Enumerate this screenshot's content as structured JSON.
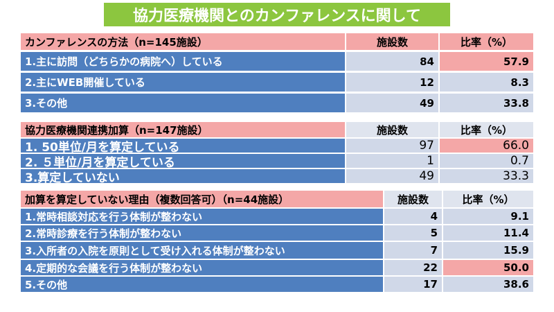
{
  "title": "協力医療機関とのカンファレンスに関して",
  "tables": [
    {
      "header": [
        "カンファレンスの方法（n=145施設）",
        "施設数",
        "比率（%）"
      ],
      "rows": [
        [
          "1.主に訪問（どちらかの病院へ）している",
          84,
          57.9
        ],
        [
          "2.主にWEB開催している",
          12,
          8.3
        ],
        [
          "3.その他",
          49,
          33.8
        ]
      ],
      "highlighted_rows": [
        0
      ],
      "bold_values": true
    },
    {
      "header": [
        "協力医療機関連携加算（n=147施設）",
        "施設数",
        "比率（%）"
      ],
      "rows": [
        [
          "1. 50単位/月を算定している",
          97,
          {
            "value": 66,
            "label": "66.0"
          }
        ],
        [
          "2. ５単位/月を算定している",
          1,
          0.7
        ],
        [
          "3.算定していない",
          49,
          33.3
        ]
      ],
      "highlighted_rows": [
        0
      ],
      "bold_values": false
    },
    {
      "header": [
        "加算を算定していない理由（複数回答可）（n=44施設）",
        "施設数",
        "比率（%）"
      ],
      "rows": [
        [
          "1.常時相談対応を行う体制が整わない",
          4,
          9.1
        ],
        [
          "2.常時診療を行う体制が整わない",
          5,
          11.4
        ],
        [
          "3.入所者の入院を原則として受け入れる体制が整わない",
          7,
          15.9
        ],
        [
          "4.定期的な会議を行う体制が整わない",
          22,
          {
            "value": 50,
            "label": "50.0"
          }
        ],
        [
          "5.その他",
          17,
          38.6
        ]
      ],
      "highlighted_rows": [
        3
      ],
      "bold_values": true
    }
  ]
}
